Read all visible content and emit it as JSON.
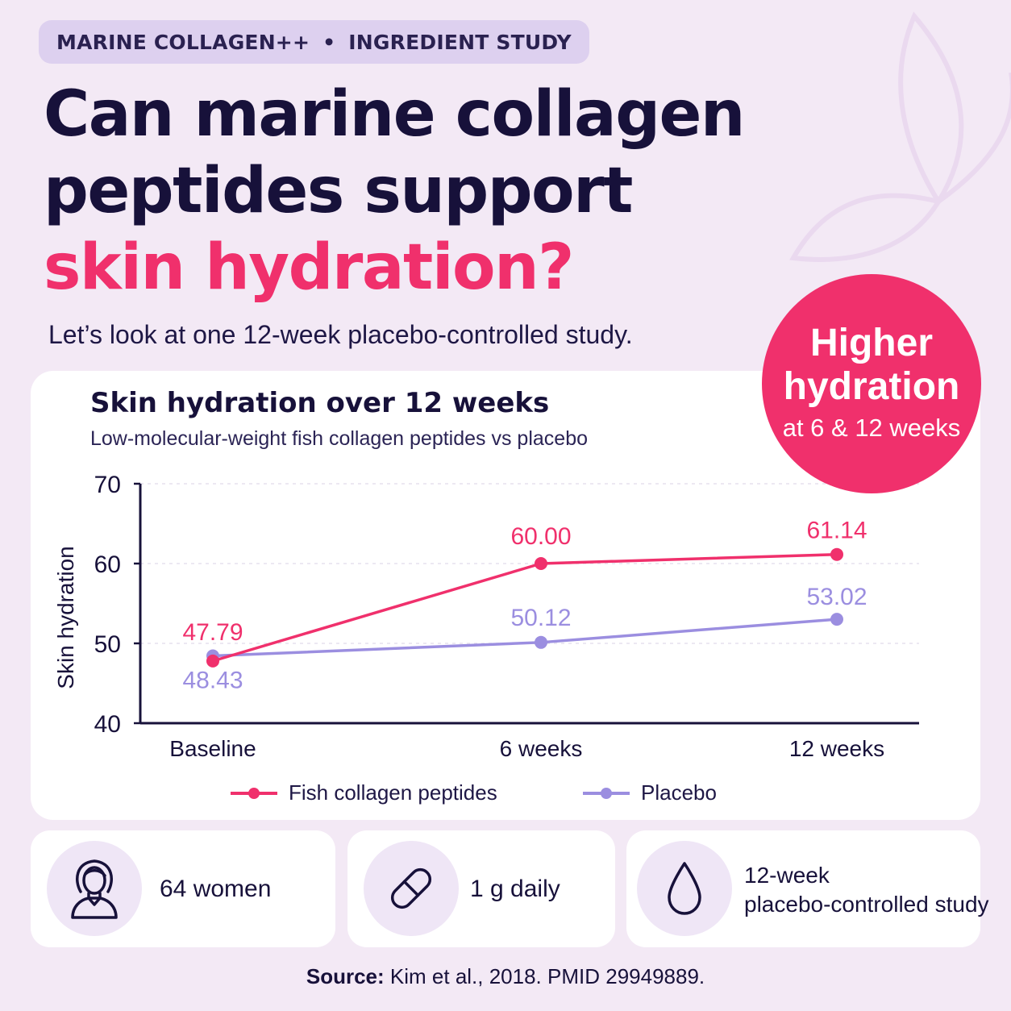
{
  "tag": {
    "left": "MARINE COLLAGEN++",
    "sep": "•",
    "right": "INGREDIENT STUDY"
  },
  "headline": {
    "line1": "Can marine collagen",
    "line2": "peptides support",
    "accent": "skin hydration?"
  },
  "lede": "Let’s look at one 12-week placebo-controlled study.",
  "badge": {
    "line1": "Higher",
    "line2": "hydration",
    "line3": "at 6 & 12 weeks"
  },
  "colors": {
    "accent": "#f0306c",
    "placebo": "#9b8ee0",
    "ink": "#17113a",
    "background": "#f3e9f5"
  },
  "chart_data": {
    "type": "line",
    "title": "Skin hydration over 12 weeks",
    "subtitle": "Low-molecular-weight fish collagen peptides vs placebo",
    "ylabel": "Skin hydration",
    "xlabel": "",
    "categories": [
      "Baseline",
      "6 weeks",
      "12 weeks"
    ],
    "ylim": [
      40,
      70
    ],
    "yticks": [
      40,
      50,
      60,
      70
    ],
    "grid": true,
    "legend": "bottom",
    "series": [
      {
        "name": "Fish collagen peptides",
        "values": [
          47.79,
          60.0,
          61.14
        ],
        "labels": [
          "47.79",
          "60.00",
          "61.14"
        ],
        "color": "#f0306c"
      },
      {
        "name": "Placebo",
        "values": [
          48.43,
          50.12,
          53.02
        ],
        "labels": [
          "48.43",
          "50.12",
          "53.02"
        ],
        "color": "#9b8ee0"
      }
    ]
  },
  "stats": [
    {
      "icon": "woman-icon",
      "text": "64 women"
    },
    {
      "icon": "capsule-icon",
      "text": "1 g daily"
    },
    {
      "icon": "droplet-icon",
      "line1": "12-week",
      "line2": "placebo-controlled study"
    }
  ],
  "source": {
    "label": "Source:",
    "text": "Kim et al., 2018. PMID 29949889."
  }
}
